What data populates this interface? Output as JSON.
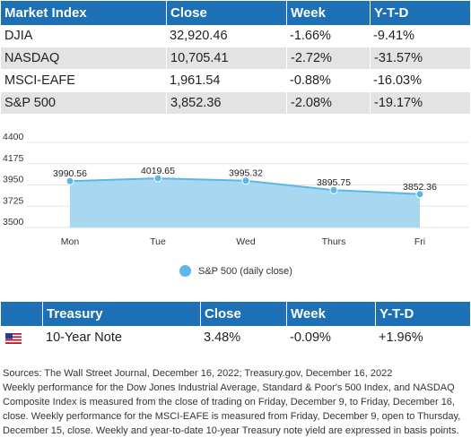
{
  "market_table": {
    "headers": [
      "Market Index",
      "Close",
      "Week",
      "Y-T-D"
    ],
    "rows": [
      [
        "DJIA",
        "32,920.46",
        "-1.66%",
        "-9.41%"
      ],
      [
        "NASDAQ",
        "10,705.41",
        "-2.72%",
        "-31.57%"
      ],
      [
        "MSCI-EAFE",
        "1,961.54",
        "-0.88%",
        "-16.03%"
      ],
      [
        "S&P 500",
        "3,852.36",
        "-2.08%",
        "-19.17%"
      ]
    ]
  },
  "chart_data": {
    "type": "area",
    "categories": [
      "Mon",
      "Tue",
      "Wed",
      "Thurs",
      "Fri"
    ],
    "series": [
      {
        "name": "S&P 500 (daily close)",
        "values": [
          3990.56,
          4019.65,
          3995.32,
          3895.75,
          3852.36
        ]
      }
    ],
    "data_labels": [
      "3990.56",
      "4019.65",
      "3995.32",
      "3895.75",
      "3852.36"
    ],
    "yticks": [
      "4400",
      "4175",
      "3950",
      "3725",
      "3500"
    ],
    "ylim": [
      3500,
      4400
    ],
    "grid": true,
    "legend_position": "bottom",
    "color": "#5ab7e8",
    "fill": "#a8d8f0"
  },
  "treasury_table": {
    "headers": [
      "Treasury",
      "Close",
      "Week",
      "Y-T-D"
    ],
    "row": {
      "flag": "us-flag-icon",
      "name": "10-Year Note",
      "close": "3.48%",
      "week": "-0.09%",
      "ytd": "+1.96%"
    }
  },
  "sources": [
    "Sources: The Wall Street Journal, December 16, 2022; Treasury.gov, December 16, 2022",
    "Weekly performance for the Dow Jones Industrial Average, Standard & Poor's 500 Index, and NASDAQ Composite Index is measured from the close of trading on Friday, December 9, to Friday, December 16, close. Weekly performance for the MSCI-EAFE is measured from Friday, December 9, open to Thursday, December 15, close. Weekly and year-to-date 10-year Treasury note yield are expressed in basis points."
  ]
}
